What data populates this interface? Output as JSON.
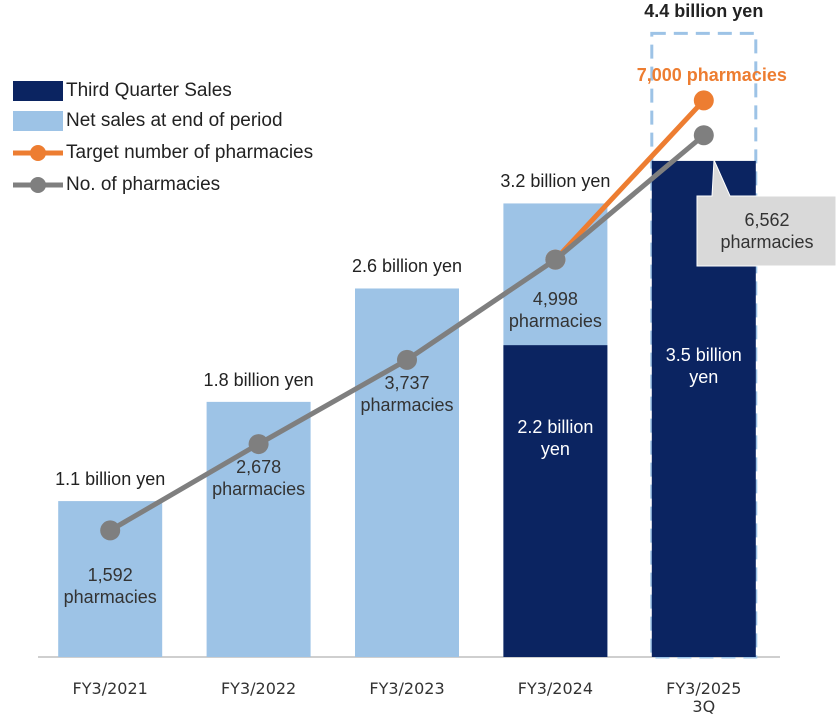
{
  "chart_data": {
    "type": "bar",
    "categories": [
      "FY3/2021",
      "FY3/2022",
      "FY3/2023",
      "FY3/2024",
      "FY3/2025\n3Q"
    ],
    "ylim": [
      0,
      4.6
    ],
    "y2lim": [
      0,
      8200
    ],
    "legend": "top-left",
    "series": [
      {
        "name": "Third Quarter Sales",
        "type": "bar",
        "color": "#0b2461",
        "values": [
          null,
          null,
          null,
          2.2,
          3.5
        ],
        "value_labels": [
          null,
          null,
          null,
          "2.2 billion\nyen",
          "3.5 billion\nyen"
        ]
      },
      {
        "name": "Net sales at end of period",
        "type": "bar",
        "color": "#9dc3e6",
        "values": [
          1.1,
          1.8,
          2.6,
          3.2,
          4.4
        ],
        "dashed": [
          false,
          false,
          false,
          false,
          true
        ],
        "value_labels": [
          "1.1 billion yen",
          "1.8 billion yen",
          "2.6 billion yen",
          "3.2 billion yen",
          "4.4 billion yen"
        ]
      },
      {
        "name": "Target number of pharmacies",
        "type": "line",
        "axis": "y2",
        "color": "#ed7d31",
        "values": [
          null,
          null,
          null,
          4998,
          7000
        ],
        "value_labels": [
          null,
          null,
          null,
          null,
          "7,000 pharmacies"
        ]
      },
      {
        "name": "No. of pharmacies",
        "type": "line",
        "axis": "y2",
        "color": "#7f7f7f",
        "values": [
          1592,
          2678,
          3737,
          4998,
          6562
        ],
        "value_labels": [
          "1,592\npharmacies",
          "2,678\npharmacies",
          "3,737\npharmacies",
          "4,998\npharmacies",
          "6,562\npharmacies"
        ]
      }
    ]
  }
}
